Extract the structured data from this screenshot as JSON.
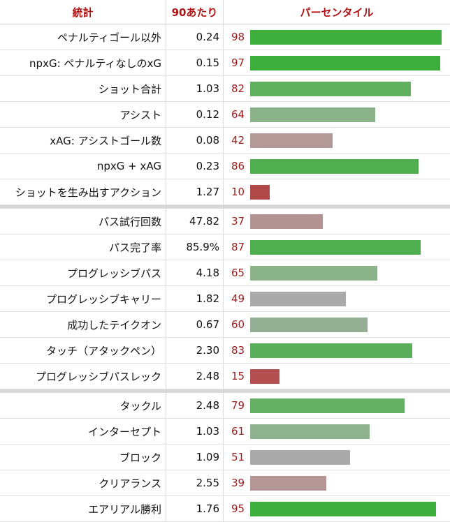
{
  "header": {
    "col_stat": "統計",
    "col_per90": "90あたり",
    "col_percentile": "パーセンタイル"
  },
  "groups": [
    {
      "rows": [
        {
          "label": "ペナルティゴール以外",
          "value": "0.24",
          "percentile": "98",
          "color": "#3caf3c"
        },
        {
          "label": "npxG: ペナルティなしのxG",
          "value": "0.15",
          "percentile": "97",
          "color": "#3caf3c"
        },
        {
          "label": "ショット合計",
          "value": "1.03",
          "percentile": "82",
          "color": "#60b060"
        },
        {
          "label": "アシスト",
          "value": "0.12",
          "percentile": "64",
          "color": "#8ab38a"
        },
        {
          "label": "xAG: アシストゴール数",
          "value": "0.08",
          "percentile": "42",
          "color": "#b49999"
        },
        {
          "label": "npxG + xAG",
          "value": "0.23",
          "percentile": "86",
          "color": "#4fae4f"
        },
        {
          "label": "ショットを生み出すアクション",
          "value": "1.27",
          "percentile": "10",
          "color": "#b04848"
        }
      ]
    },
    {
      "rows": [
        {
          "label": "パス試行回数",
          "value": "47.82",
          "percentile": "37",
          "color": "#b49393"
        },
        {
          "label": "パス完了率",
          "value": "85.9%",
          "percentile": "87",
          "color": "#4fae4f"
        },
        {
          "label": "プログレッシブパス",
          "value": "4.18",
          "percentile": "65",
          "color": "#8ab38a"
        },
        {
          "label": "プログレッシブキャリー",
          "value": "1.82",
          "percentile": "49",
          "color": "#aaaaaa"
        },
        {
          "label": "成功したテイクオン",
          "value": "0.67",
          "percentile": "60",
          "color": "#94af94"
        },
        {
          "label": "タッチ（アタックペン）",
          "value": "2.30",
          "percentile": "83",
          "color": "#5aaf5a"
        },
        {
          "label": "プログレッシブパスレック",
          "value": "2.48",
          "percentile": "15",
          "color": "#b55050"
        }
      ]
    },
    {
      "rows": [
        {
          "label": "タックル",
          "value": "2.48",
          "percentile": "79",
          "color": "#64b064"
        },
        {
          "label": "インターセプト",
          "value": "1.03",
          "percentile": "61",
          "color": "#8eb18e"
        },
        {
          "label": "ブロック",
          "value": "1.09",
          "percentile": "51",
          "color": "#aaaaaa"
        },
        {
          "label": "クリアランス",
          "value": "2.55",
          "percentile": "39",
          "color": "#b49696"
        },
        {
          "label": "エアリアル勝利",
          "value": "1.76",
          "percentile": "95",
          "color": "#3caf3c"
        }
      ]
    }
  ]
}
